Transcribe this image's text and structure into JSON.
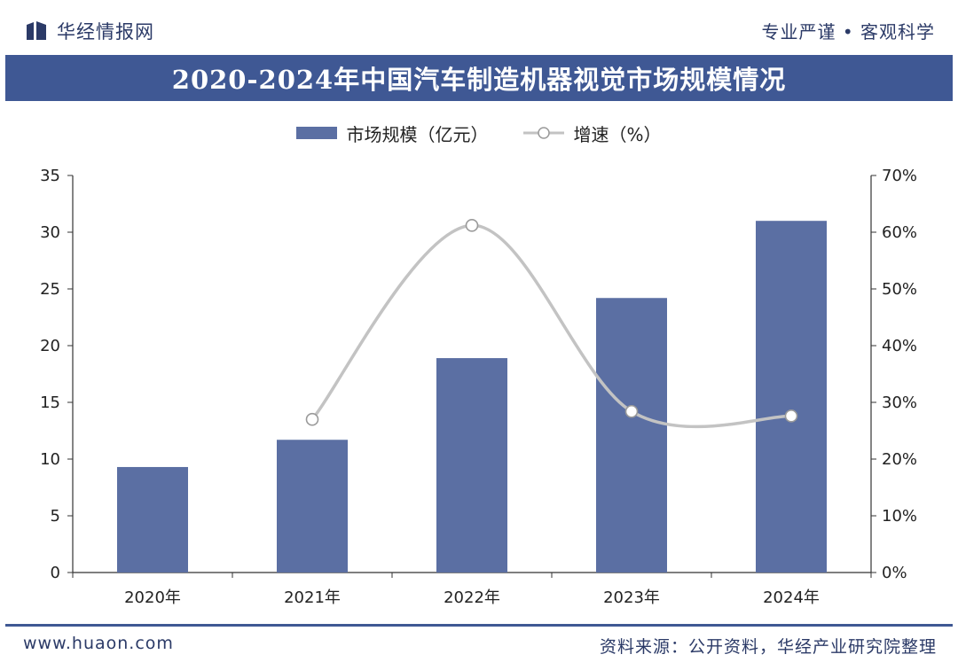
{
  "header": {
    "brand_name": "华经情报网",
    "slogan": "专业严谨 • 客观科学"
  },
  "footer": {
    "url": "www.huaon.com",
    "source": "资料来源：公开资料，华经产业研究院整理"
  },
  "colors": {
    "accent": "#3f5894",
    "bar": "#5b6fa3",
    "line": "#c3c3c3",
    "marker_fill": "#ffffff",
    "marker_stroke": "#9a9a9a"
  },
  "chart_data": {
    "type": "bar",
    "title": "2020-2024年中国汽车制造机器视觉市场规模情况",
    "categories": [
      "2020年",
      "2021年",
      "2022年",
      "2023年",
      "2024年"
    ],
    "series": [
      {
        "name": "市场规模（亿元）",
        "type": "bar",
        "axis": "left",
        "values": [
          9.3,
          11.7,
          18.9,
          24.2,
          31.0
        ]
      },
      {
        "name": "增速（%）",
        "type": "line",
        "axis": "right",
        "values": [
          null,
          27.0,
          61.2,
          28.4,
          27.6
        ]
      }
    ],
    "y_left": {
      "min": 0,
      "max": 35,
      "ticks": [
        "0",
        "5",
        "10",
        "15",
        "20",
        "25",
        "30",
        "35"
      ]
    },
    "y_right": {
      "min": 0,
      "max": 70,
      "ticks": [
        "0%",
        "10%",
        "20%",
        "30%",
        "40%",
        "50%",
        "60%",
        "70%"
      ]
    },
    "grid": false,
    "legend_position": "top-center"
  }
}
